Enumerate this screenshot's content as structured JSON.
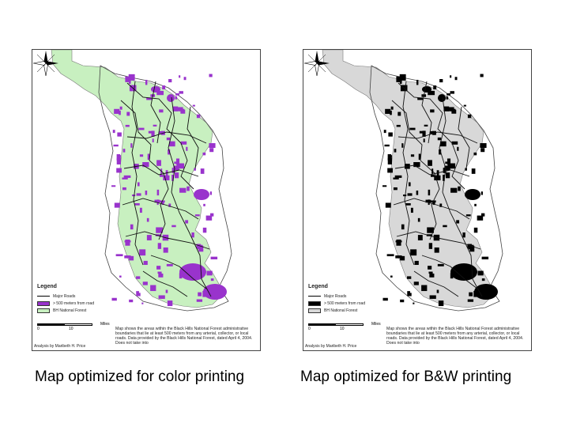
{
  "maps": [
    {
      "id": "color",
      "caption": "Map optimized for color printing",
      "colors": {
        "forest": "#c8f0c0",
        "remote": "#9933cc",
        "road": "#111111",
        "outline": "#444444"
      },
      "legend": {
        "title": "Legend",
        "items": [
          {
            "label": "Major Roads",
            "type": "line"
          },
          {
            "label": "> 500 meters from road",
            "type": "fill",
            "color": "#9933cc"
          },
          {
            "label": "BH National Forest",
            "type": "fill",
            "color": "#c8f0c0"
          }
        ]
      },
      "scale": {
        "zero": "0",
        "ten": "10",
        "unit": "Miles"
      },
      "analysis": "Analysis by Maribeth H. Price",
      "note": "Map shows the areas within the Black Hills National Forest administrative boundaries that lie at least 500 meters from any arterial, collector, or local roads.  Data provided by the Black Hills National Forest, dated April 4, 2004.  Does not take into"
    },
    {
      "id": "bw",
      "caption": "Map optimized for B&W printing",
      "colors": {
        "forest": "#d8d8d8",
        "remote": "#000000",
        "road": "#111111",
        "outline": "#444444"
      },
      "legend": {
        "title": "Legend",
        "items": [
          {
            "label": "Major Roads",
            "type": "line"
          },
          {
            "label": "> 500 meters from road",
            "type": "fill",
            "color": "#000000"
          },
          {
            "label": "BH National Forest",
            "type": "fill",
            "color": "#d8d8d8"
          }
        ]
      },
      "scale": {
        "zero": "0",
        "ten": "10",
        "unit": "Miles"
      },
      "analysis": "Analysis by Maribeth H. Price",
      "note": "Map shows the areas within the Black Hills National Forest administrative boundaries that lie at least 500 meters from any arterial, collector, or local roads.  Data provided by the Black Hills National Forest, dated April 4, 2004.  Does not take into"
    }
  ]
}
